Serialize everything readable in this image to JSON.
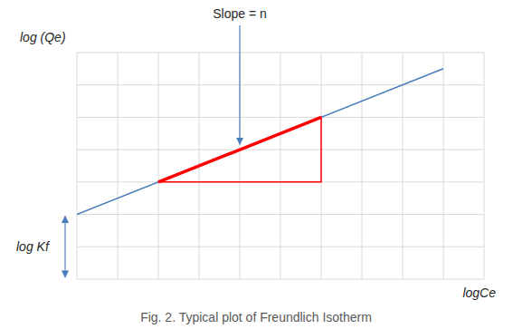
{
  "chart_data": {
    "type": "line",
    "caption": "Fig. 2. Typical plot of Freundlich Isotherm",
    "x_label": "logCe",
    "y_label": "log (Qe)",
    "x": [
      0,
      9
    ],
    "values": [
      2,
      6.5
    ],
    "color": "#4a7ebb",
    "xlim": [
      0,
      10
    ],
    "ylim": [
      0,
      7
    ],
    "xticks": [
      0,
      1,
      2,
      3,
      4,
      5,
      6,
      7,
      8,
      9,
      10
    ],
    "yticks": [
      0,
      1,
      2,
      3,
      4,
      5,
      6,
      7
    ],
    "grid": true,
    "tick_labels": false,
    "slope_triangle": {
      "x": [
        2,
        6,
        6
      ],
      "y": [
        3,
        5,
        3
      ],
      "color": "#ff0000"
    },
    "annotations": [
      {
        "text": "Slope = n",
        "x": 4,
        "y": 4
      },
      {
        "text": "log Kf",
        "y_from": 0,
        "y_to": 2
      }
    ]
  }
}
